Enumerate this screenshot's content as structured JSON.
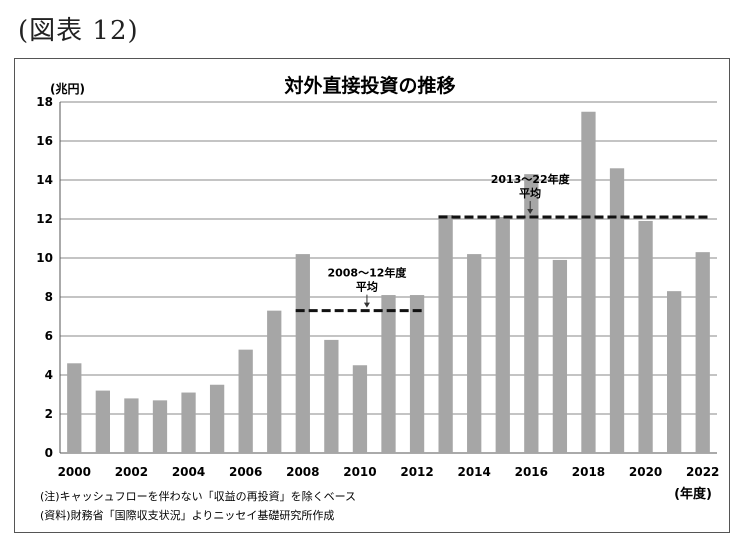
{
  "figure_label": "(図表 12)",
  "chart_data": {
    "type": "bar",
    "title": "対外直接投資の推移",
    "ylabel": "(兆円)",
    "xlabel": "(年度)",
    "ylim": [
      0,
      18
    ],
    "ytick_step": 2,
    "grid": true,
    "bar_color": "#a6a6a6",
    "categories": [
      "2000",
      "2001",
      "2002",
      "2003",
      "2004",
      "2005",
      "2006",
      "2007",
      "2008",
      "2009",
      "2010",
      "2011",
      "2012",
      "2013",
      "2014",
      "2015",
      "2016",
      "2017",
      "2018",
      "2019",
      "2020",
      "2021",
      "2022"
    ],
    "x_tick_labels": [
      "2000",
      "",
      "2002",
      "",
      "2004",
      "",
      "2006",
      "",
      "2008",
      "",
      "2010",
      "",
      "2012",
      "",
      "2014",
      "",
      "2016",
      "",
      "2018",
      "",
      "2020",
      "",
      "2022"
    ],
    "values": [
      4.6,
      3.2,
      2.8,
      2.7,
      3.1,
      3.5,
      5.3,
      7.3,
      10.2,
      5.8,
      4.5,
      8.1,
      8.1,
      12.2,
      10.2,
      12.1,
      14.3,
      9.9,
      17.5,
      14.6,
      11.9,
      8.3,
      10.3
    ],
    "averages": [
      {
        "label_line1": "2008〜12年度",
        "label_line2": "平均",
        "value": 7.3,
        "from": "2008",
        "to": "2012"
      },
      {
        "label_line1": "2013〜22年度",
        "label_line2": "平均",
        "value": 12.1,
        "from": "2013",
        "to": "2022"
      }
    ],
    "notes": [
      "(注)キャッシュフローを伴わない「収益の再投資」を除くベース",
      "(資料)財務省「国際収支状況」よりニッセイ基礎研究所作成"
    ]
  }
}
